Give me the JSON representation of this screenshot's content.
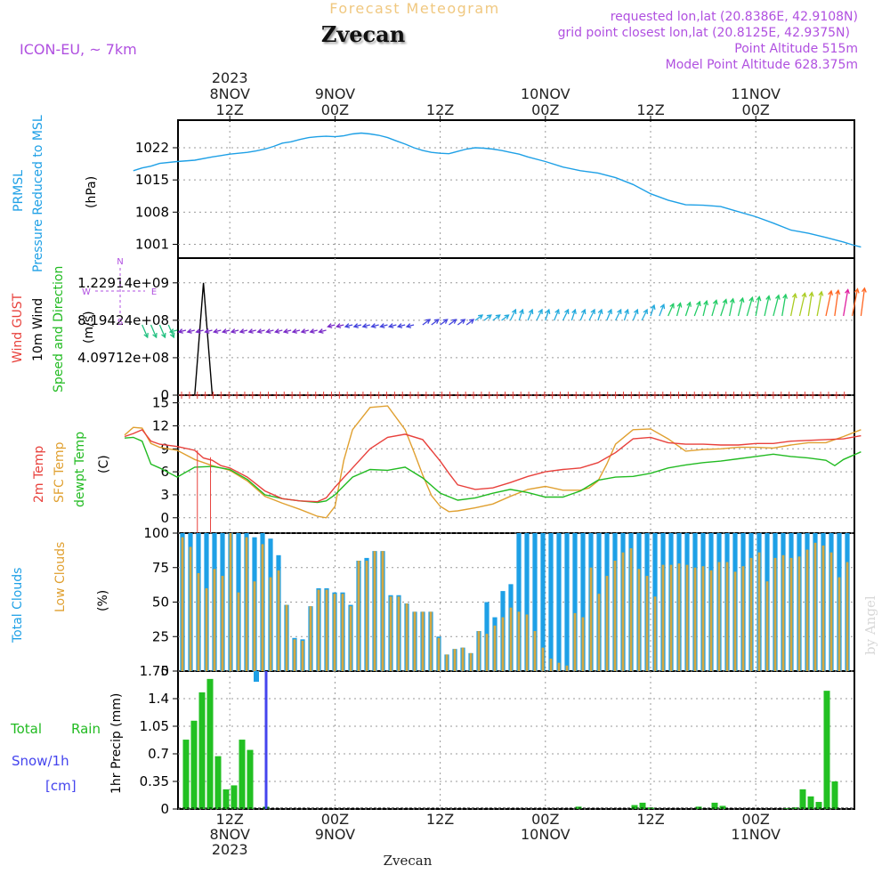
{
  "header": {
    "title": "Forecast Meteogram",
    "location": "Zvecan",
    "model": "ICON-EU, ~ 7km",
    "requested": "requested lon,lat (20.8386E, 42.9108N)",
    "grid_point": "grid point closest lon,lat (20.8125E, 42.9375N)",
    "point_altitude": "Point Altitude 515m",
    "model_altitude": "Model Point Altitude 628.375m",
    "watermark": "by Angel",
    "footer_label": "Zvecan"
  },
  "colors": {
    "pressure": "#1ea0e6",
    "gust": "#e8413c",
    "wind_label": "#000000",
    "speed_dir": "#22bb22",
    "temp2m": "#e8413c",
    "sfc": "#e0a030",
    "dewpt": "#22bb22",
    "total_clouds": "#1ea0e6",
    "low_clouds": "#d6a840",
    "rain": "#22c022",
    "snow": "#4444ee",
    "purple": "#b050e0",
    "header_title": "#f0c880"
  },
  "time_axis": {
    "top": [
      {
        "hour": 12,
        "lines": [
          "2023",
          "8NOV",
          "12Z"
        ]
      },
      {
        "hour": 24,
        "lines": [
          "9NOV",
          "00Z"
        ]
      },
      {
        "hour": 36,
        "lines": [
          "12Z"
        ]
      },
      {
        "hour": 48,
        "lines": [
          "10NOV",
          "00Z"
        ]
      },
      {
        "hour": 60,
        "lines": [
          "12Z"
        ]
      },
      {
        "hour": 72,
        "lines": [
          "11NOV",
          "00Z"
        ]
      }
    ],
    "bottom": [
      {
        "hour": 12,
        "lines": [
          "12Z",
          "8NOV",
          "2023"
        ]
      },
      {
        "hour": 24,
        "lines": [
          "00Z",
          "9NOV"
        ]
      },
      {
        "hour": 36,
        "lines": [
          "12Z"
        ]
      },
      {
        "hour": 48,
        "lines": [
          "00Z",
          "10NOV"
        ]
      },
      {
        "hour": 60,
        "lines": [
          "12Z"
        ]
      },
      {
        "hour": 72,
        "lines": [
          "00Z",
          "11NOV"
        ]
      }
    ]
  },
  "panels": {
    "pressure": {
      "label1": "PRMSL",
      "label2": "Pressure Reduced to MSL",
      "unit": "(hPa)",
      "ticks": [
        "1022",
        "1015",
        "1008",
        "1001"
      ]
    },
    "wind": {
      "label_gust": "Wind GUST",
      "label_wind": "10m Wind",
      "label_speed": "Speed and Direction",
      "unit": "(m/s)",
      "ticks": [
        "1.22914e+09",
        "8.19424e+08",
        "4.09712e+08",
        "0"
      ],
      "compass": [
        "N",
        "E",
        "S",
        "W"
      ]
    },
    "temp": {
      "label1": "2m Temp",
      "label2": "SFC Temp",
      "label3": "dewpt Temp",
      "unit": "(C)",
      "ticks": [
        "15",
        "12",
        "9",
        "6",
        "3",
        "0"
      ]
    },
    "clouds": {
      "label1": "Total Clouds",
      "label2": "Low Clouds",
      "unit": "(%)",
      "ticks": [
        "100",
        "75",
        "50",
        "25",
        "0"
      ]
    },
    "precip": {
      "label_total": "Total",
      "label_rain": "Rain",
      "label_snow": "Snow/1h",
      "label_cm": "[cm]",
      "axis_title": "1hr Precip (mm)",
      "ticks": [
        "1.75",
        "1.4",
        "1.05",
        "0.7",
        "0.35",
        "0"
      ]
    }
  },
  "chart_data": {
    "type": "line",
    "x_unit": "hour after 2023-11-08 00Z",
    "pressure": {
      "name": "PRMSL",
      "ylim": [
        998,
        1028
      ],
      "x": [
        1,
        2,
        3,
        4,
        6,
        8,
        10,
        11,
        12,
        14,
        15,
        16,
        17,
        18,
        19,
        20,
        21,
        22,
        23,
        24,
        25,
        26,
        27,
        28,
        29,
        30,
        31,
        32,
        33,
        34,
        35,
        36,
        37,
        38,
        39,
        40,
        41,
        42,
        43,
        44,
        45,
        46,
        48,
        50,
        52,
        54,
        56,
        58,
        60,
        62,
        64,
        66,
        68,
        70,
        72,
        74,
        76,
        78,
        80,
        82,
        83,
        84
      ],
      "values": [
        1017.0,
        1017.6,
        1018.0,
        1018.6,
        1019.0,
        1019.3,
        1020.0,
        1020.3,
        1020.6,
        1021.0,
        1021.3,
        1021.7,
        1022.3,
        1023.0,
        1023.3,
        1023.8,
        1024.2,
        1024.4,
        1024.5,
        1024.4,
        1024.6,
        1025.0,
        1025.2,
        1025.0,
        1024.7,
        1024.2,
        1023.5,
        1022.8,
        1022.0,
        1021.4,
        1021.0,
        1020.8,
        1020.7,
        1021.2,
        1021.7,
        1022.0,
        1021.9,
        1021.7,
        1021.4,
        1021.0,
        1020.6,
        1020.0,
        1019.0,
        1017.8,
        1017.0,
        1016.5,
        1015.5,
        1014.0,
        1012.0,
        1010.6,
        1009.6,
        1009.5,
        1009.2,
        1008.1,
        1007.0,
        1005.6,
        1004.1,
        1003.4,
        1002.5,
        1001.5,
        1000.9,
        1000.4
      ]
    },
    "wind": {
      "name": "10m Wind",
      "ylim": [
        0,
        1500000000
      ],
      "gust_peak": {
        "x": [
          8,
          9,
          10
        ],
        "values": [
          0,
          1229140000,
          0
        ]
      },
      "gust_baseline": 0,
      "arrows_x": [
        2,
        3,
        4,
        5,
        6,
        7,
        8,
        9,
        10,
        11,
        12,
        13,
        14,
        15,
        16,
        17,
        18,
        19,
        20,
        21,
        22,
        23,
        24,
        25,
        26,
        27,
        28,
        29,
        30,
        31,
        32,
        33,
        34,
        35,
        36,
        37,
        38,
        39,
        40,
        41,
        42,
        43,
        44,
        45,
        46,
        47,
        48,
        49,
        50,
        51,
        52,
        53,
        54,
        55,
        56,
        57,
        58,
        59,
        60,
        61,
        62,
        63,
        64,
        65,
        66,
        67,
        68,
        69,
        70,
        71,
        72,
        73,
        74,
        75,
        76,
        77,
        78,
        79,
        80,
        81,
        82,
        83,
        84
      ]
    },
    "temperature": {
      "ylim": [
        -2,
        16
      ],
      "temp2m": {
        "name": "2m Temp",
        "x": [
          0,
          1,
          2,
          3,
          4,
          6,
          8,
          9,
          10,
          11,
          12,
          14,
          16,
          18,
          20,
          22,
          23,
          24,
          26,
          28,
          30,
          32,
          34,
          35,
          36,
          37,
          38,
          40,
          42,
          44,
          46,
          48,
          50,
          52,
          54,
          56,
          58,
          60,
          62,
          64,
          66,
          68,
          70,
          72,
          74,
          76,
          78,
          80,
          82,
          84
        ],
        "values": [
          10.6,
          11.0,
          11.5,
          10.0,
          9.6,
          9.3,
          8.8,
          7.8,
          7.5,
          6.8,
          6.5,
          5.3,
          3.5,
          2.5,
          2.2,
          2.1,
          2.6,
          4.0,
          6.5,
          9.0,
          10.5,
          10.9,
          10.2,
          8.8,
          7.4,
          5.8,
          4.3,
          3.7,
          3.9,
          4.6,
          5.4,
          6.0,
          6.3,
          6.5,
          7.2,
          8.5,
          10.3,
          10.5,
          9.8,
          9.6,
          9.6,
          9.5,
          9.5,
          9.7,
          9.7,
          10.0,
          10.1,
          10.2,
          10.3,
          10.7
        ]
      },
      "sfc": {
        "name": "SFC Temp",
        "x": [
          0,
          1,
          2,
          3,
          4,
          6,
          8,
          10,
          12,
          14,
          16,
          18,
          20,
          22,
          23,
          24,
          25,
          26,
          28,
          30,
          32,
          33,
          34,
          35,
          36,
          37,
          38,
          40,
          42,
          44,
          46,
          48,
          50,
          52,
          53,
          54,
          55,
          56,
          58,
          60,
          62,
          64,
          66,
          68,
          70,
          72,
          74,
          76,
          78,
          80,
          82,
          84
        ],
        "values": [
          10.8,
          11.8,
          11.7,
          9.7,
          9.2,
          8.8,
          7.6,
          6.8,
          6.2,
          4.8,
          2.8,
          1.9,
          1.1,
          0.2,
          0.0,
          1.5,
          7.5,
          11.5,
          14.4,
          14.6,
          11.5,
          8.6,
          5.6,
          2.9,
          1.5,
          0.8,
          0.9,
          1.3,
          1.8,
          2.8,
          3.7,
          4.1,
          3.6,
          3.6,
          3.9,
          4.8,
          7.0,
          9.6,
          11.5,
          11.6,
          10.3,
          8.7,
          8.9,
          9.0,
          9.2,
          9.2,
          9.1,
          9.5,
          9.8,
          9.8,
          10.6,
          11.5
        ]
      },
      "dewpt": {
        "name": "dewpt Temp",
        "x": [
          0,
          1,
          2,
          3,
          4,
          6,
          8,
          10,
          12,
          14,
          16,
          18,
          20,
          22,
          23,
          24,
          26,
          28,
          30,
          32,
          34,
          36,
          38,
          40,
          42,
          44,
          46,
          48,
          50,
          52,
          54,
          56,
          58,
          60,
          62,
          64,
          66,
          68,
          70,
          72,
          74,
          76,
          78,
          80,
          81,
          82,
          84
        ],
        "values": [
          10.4,
          10.5,
          10.0,
          7.0,
          6.5,
          5.3,
          6.6,
          6.7,
          6.3,
          5.0,
          3.0,
          2.5,
          2.2,
          2.0,
          2.2,
          3.0,
          5.3,
          6.3,
          6.2,
          6.6,
          5.2,
          3.2,
          2.3,
          2.6,
          3.2,
          3.7,
          3.3,
          2.7,
          2.7,
          3.5,
          4.9,
          5.3,
          5.4,
          5.8,
          6.5,
          6.9,
          7.2,
          7.4,
          7.7,
          8.0,
          8.3,
          8.0,
          7.8,
          7.5,
          6.8,
          7.6,
          8.6
        ]
      }
    },
    "clouds": {
      "ylim": [
        0,
        100
      ],
      "total": [
        100,
        100,
        100,
        100,
        100,
        100,
        100,
        100,
        100,
        97,
        100,
        96,
        84,
        48,
        24,
        23,
        47,
        60,
        60,
        57,
        57,
        48,
        80,
        82,
        87,
        87,
        55,
        55,
        49,
        43,
        43,
        43,
        25,
        12,
        16,
        17,
        13,
        29,
        50,
        39,
        58,
        63,
        100,
        100,
        100,
        100,
        100,
        100,
        100,
        100,
        100,
        100,
        100,
        100,
        100,
        100,
        100,
        100,
        100,
        100,
        100,
        100,
        100,
        100,
        100,
        100,
        100,
        100,
        100,
        100,
        100,
        100,
        100,
        100,
        100,
        100,
        100,
        100,
        100,
        100,
        100,
        100,
        100,
        100,
        100
      ],
      "low": [
        97,
        90,
        71,
        60,
        74,
        69,
        100,
        57,
        97,
        65,
        92,
        68,
        73,
        48,
        23,
        22,
        47,
        59,
        59,
        56,
        56,
        47,
        80,
        80,
        87,
        87,
        54,
        54,
        49,
        43,
        43,
        43,
        24,
        12,
        16,
        17,
        13,
        29,
        27,
        33,
        39,
        46,
        43,
        41,
        29,
        17,
        9,
        6,
        4,
        42,
        39,
        75,
        56,
        69,
        80,
        86,
        89,
        74,
        69,
        54,
        77,
        77,
        78,
        77,
        75,
        76,
        73,
        79,
        79,
        72,
        76,
        82,
        86,
        65,
        82,
        84,
        82,
        83,
        88,
        93,
        91,
        86,
        68,
        79,
        97
      ],
      "below_zero_bar": {
        "x": 7,
        "value": -8
      }
    },
    "precip": {
      "ylim": [
        0,
        1.75
      ],
      "rain": [
        0.88,
        1.12,
        1.48,
        1.65,
        0.67,
        0.25,
        0.3,
        0.88,
        0.75,
        0,
        0.03,
        0,
        0,
        0,
        0,
        0,
        0,
        0,
        0,
        0,
        0,
        0,
        0,
        0,
        0,
        0,
        0,
        0,
        0,
        0,
        0,
        0,
        0,
        0,
        0,
        0,
        0,
        0,
        0,
        0,
        0,
        0,
        0,
        0,
        0,
        0,
        0,
        0,
        0,
        0.03,
        0,
        0,
        0,
        0,
        0,
        0,
        0.05,
        0.08,
        0.02,
        0,
        0,
        0,
        0,
        0,
        0.03,
        0,
        0.08,
        0.04,
        0,
        0,
        0,
        0,
        0,
        0,
        0,
        0.01,
        0.02,
        0.25,
        0.16,
        0.09,
        1.5,
        0.35
      ],
      "snow_marker_x": 9.5
    }
  }
}
